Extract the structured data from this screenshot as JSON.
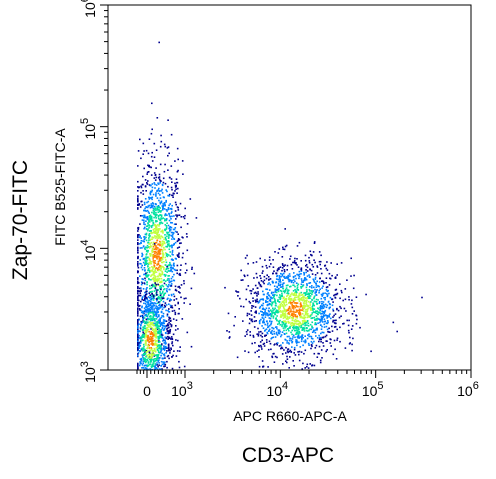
{
  "chart_data": {
    "type": "scatter",
    "subtype": "flow-cytometry-density-dot-plot",
    "xlabel_outer": "CD3-APC",
    "ylabel_outer": "Zap-70-FITC",
    "xlabel": "APC R660-APC-A",
    "ylabel": "FITC B525-FITC-A",
    "x_scale": "biexponential",
    "y_scale": "log",
    "xlim": [
      -300,
      1000000
    ],
    "ylim": [
      1000,
      1000000
    ],
    "x_ticks": [
      {
        "value": 0,
        "label": "0"
      },
      {
        "value": 1000,
        "label": "10",
        "exp": "3"
      },
      {
        "value": 10000,
        "label": "10",
        "exp": "4"
      },
      {
        "value": 100000,
        "label": "10",
        "exp": "5"
      },
      {
        "value": 1000000,
        "label": "10",
        "exp": "6"
      }
    ],
    "y_ticks": [
      {
        "value": 1000,
        "label": "10",
        "exp": "3"
      },
      {
        "value": 10000,
        "label": "10",
        "exp": "4"
      },
      {
        "value": 100000,
        "label": "10",
        "exp": "5"
      },
      {
        "value": 1000000,
        "label": "10",
        "exp": "6"
      }
    ],
    "grid": false,
    "populations": [
      {
        "center_x": 250,
        "center_y": 9000,
        "spread_x": 0.55,
        "spread_y": 0.38,
        "count": 1400
      },
      {
        "center_x": 80,
        "center_y": 1800,
        "spread_x": 0.45,
        "spread_y": 0.22,
        "count": 900
      },
      {
        "center_x": 14000,
        "center_y": 3200,
        "spread_x": 0.25,
        "spread_y": 0.2,
        "count": 1600
      }
    ],
    "outliers": [
      {
        "x": 300,
        "y": 500000
      },
      {
        "x": 250,
        "y": 120000
      },
      {
        "x": 150000,
        "y": 2500
      },
      {
        "x": 300000,
        "y": 4000
      }
    ],
    "colors": {
      "density_low": "#00008f",
      "density_mid1": "#0080ff",
      "density_mid2": "#00e0a0",
      "density_mid3": "#c0ff40",
      "density_high": "#ff8000",
      "axis": "#000000"
    }
  }
}
